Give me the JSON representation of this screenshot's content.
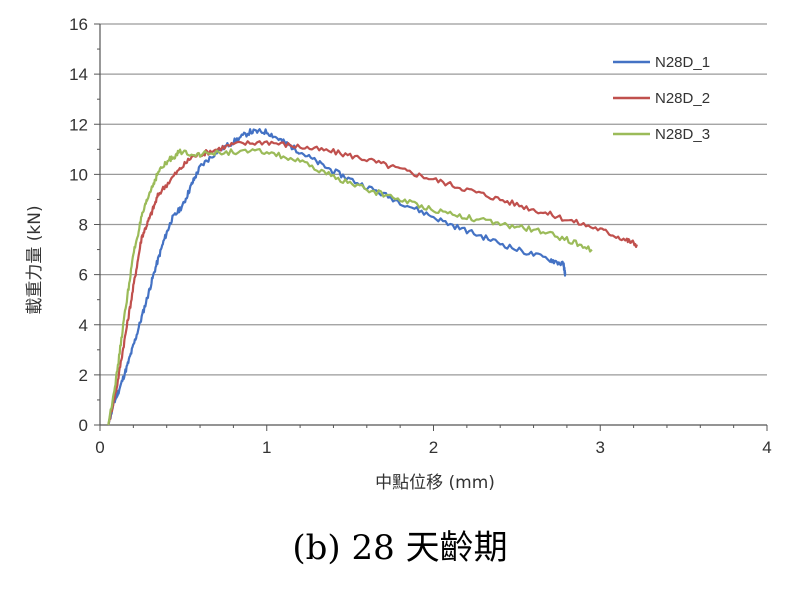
{
  "caption": "(b) 28 天齡期",
  "chart_data": {
    "type": "line",
    "xlabel": "中點位移 (mm)",
    "ylabel": "載重力量 (kN)",
    "xlim": [
      0,
      4
    ],
    "ylim": [
      0,
      16
    ],
    "xticks": [
      "0",
      "1",
      "2",
      "3",
      "4"
    ],
    "yticks": [
      "0",
      "2",
      "4",
      "6",
      "8",
      "10",
      "12",
      "14",
      "16"
    ],
    "grid": "horizontal",
    "legend_position": "top-right",
    "series": [
      {
        "name": "N28D_1",
        "color": "#4472C4",
        "points": [
          [
            0.05,
            0
          ],
          [
            0.08,
            0.8
          ],
          [
            0.12,
            1.5
          ],
          [
            0.17,
            2.5
          ],
          [
            0.22,
            3.6
          ],
          [
            0.28,
            5.0
          ],
          [
            0.33,
            6.2
          ],
          [
            0.38,
            7.3
          ],
          [
            0.43,
            8.2
          ],
          [
            0.5,
            8.8
          ],
          [
            0.55,
            9.6
          ],
          [
            0.6,
            10.3
          ],
          [
            0.7,
            10.9
          ],
          [
            0.8,
            11.3
          ],
          [
            0.9,
            11.7
          ],
          [
            1.0,
            11.7
          ],
          [
            1.1,
            11.3
          ],
          [
            1.2,
            10.9
          ],
          [
            1.35,
            10.3
          ],
          [
            1.5,
            9.8
          ],
          [
            1.7,
            9.2
          ],
          [
            1.9,
            8.6
          ],
          [
            2.1,
            8.0
          ],
          [
            2.3,
            7.5
          ],
          [
            2.5,
            7.0
          ],
          [
            2.7,
            6.6
          ],
          [
            2.78,
            6.4
          ],
          [
            2.79,
            6.0
          ]
        ]
      },
      {
        "name": "N28D_2",
        "color": "#C0504D",
        "points": [
          [
            0.05,
            0
          ],
          [
            0.1,
            1.5
          ],
          [
            0.15,
            3.5
          ],
          [
            0.2,
            5.5
          ],
          [
            0.25,
            7.5
          ],
          [
            0.3,
            8.3
          ],
          [
            0.35,
            9.2
          ],
          [
            0.45,
            10.0
          ],
          [
            0.55,
            10.7
          ],
          [
            0.65,
            10.9
          ],
          [
            0.8,
            11.2
          ],
          [
            1.0,
            11.3
          ],
          [
            1.2,
            11.1
          ],
          [
            1.4,
            10.9
          ],
          [
            1.6,
            10.6
          ],
          [
            1.8,
            10.2
          ],
          [
            2.0,
            9.8
          ],
          [
            2.2,
            9.4
          ],
          [
            2.4,
            9.0
          ],
          [
            2.6,
            8.6
          ],
          [
            2.8,
            8.2
          ],
          [
            3.0,
            7.8
          ],
          [
            3.15,
            7.4
          ],
          [
            3.22,
            7.2
          ]
        ]
      },
      {
        "name": "N28D_3",
        "color": "#9BBB59",
        "points": [
          [
            0.05,
            0
          ],
          [
            0.1,
            2.0
          ],
          [
            0.15,
            4.5
          ],
          [
            0.2,
            6.8
          ],
          [
            0.25,
            8.3
          ],
          [
            0.3,
            9.3
          ],
          [
            0.35,
            10.1
          ],
          [
            0.42,
            10.6
          ],
          [
            0.48,
            10.9
          ],
          [
            0.6,
            10.8
          ],
          [
            0.8,
            10.9
          ],
          [
            1.0,
            10.9
          ],
          [
            1.2,
            10.5
          ],
          [
            1.4,
            9.9
          ],
          [
            1.6,
            9.4
          ],
          [
            1.8,
            9.0
          ],
          [
            2.0,
            8.6
          ],
          [
            2.2,
            8.3
          ],
          [
            2.4,
            8.0
          ],
          [
            2.6,
            7.8
          ],
          [
            2.8,
            7.4
          ],
          [
            2.95,
            7.0
          ]
        ]
      }
    ]
  }
}
